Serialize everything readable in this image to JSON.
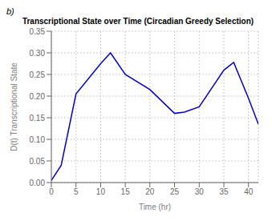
{
  "chart_data": {
    "type": "line",
    "title": "Transcriptional State over Time (Circadian Greedy Selection)",
    "x_label": "Time (hr)",
    "y_label": "D(t) Transcriptional State",
    "annotations": [
      "b)"
    ],
    "x": [
      0,
      2,
      5,
      10,
      12,
      15,
      20,
      25,
      27,
      30,
      35,
      37,
      40,
      42
    ],
    "series": [
      {
        "name": "D(t)",
        "color": "#0000cc",
        "values": [
          0.005,
          0.04,
          0.205,
          0.275,
          0.3,
          0.25,
          0.215,
          0.16,
          0.163,
          0.175,
          0.26,
          0.278,
          0.195,
          0.135
        ]
      }
    ],
    "xlim": [
      0,
      42
    ],
    "ylim": [
      0,
      0.35
    ],
    "xticks": [
      0,
      5,
      10,
      15,
      20,
      25,
      30,
      35,
      40
    ],
    "yticks": [
      {
        "value": 0,
        "label": "0.00"
      },
      0.05,
      {
        "value": 0.1,
        "label": "0.10"
      },
      0.15,
      {
        "value": 0.2,
        "label": "0.20"
      },
      0.25,
      {
        "value": 0.3,
        "label": "0.30"
      },
      0.35
    ],
    "grid": true
  }
}
